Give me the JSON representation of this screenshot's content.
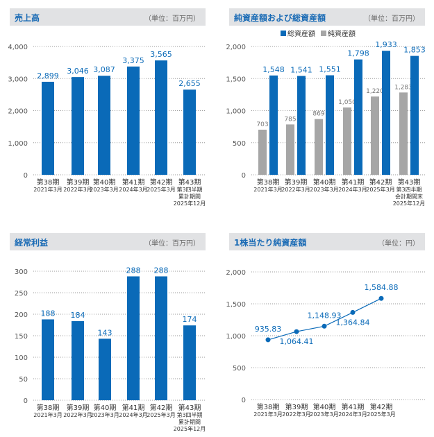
{
  "colors": {
    "blue": "#0a6ab8",
    "gray": "#a6a6a6",
    "header_bg": "#e1e2e4",
    "title": "#1a6bb5"
  },
  "chart_data": [
    {
      "type": "bar",
      "title": "売上高",
      "unit": "（単位：百万円）",
      "categories": [
        [
          "第38期",
          "2021年3月"
        ],
        [
          "第39期",
          "2022年3月"
        ],
        [
          "第40期",
          "2023年3月"
        ],
        [
          "第41期",
          "2024年3月"
        ],
        [
          "第42期",
          "2025年3月"
        ],
        [
          "第43期",
          "第3四半期",
          "累計期間",
          "2025年12月"
        ]
      ],
      "values": [
        2899,
        3046,
        3087,
        3375,
        3565,
        2655
      ],
      "value_labels": [
        "2,899",
        "3,046",
        "3,087",
        "3,375",
        "3,565",
        "2,655"
      ],
      "ylim": [
        0,
        4000
      ],
      "yticks": [
        "0",
        "1,000",
        "2,000",
        "3,000",
        "4,000"
      ],
      "grid": true
    },
    {
      "type": "bar",
      "title": "純資産額および総資産額",
      "unit": "（単位：百万円）",
      "legend": [
        "総資産額",
        "純資産額"
      ],
      "legend_position": "top-center",
      "categories": [
        [
          "第38期",
          "2021年3月"
        ],
        [
          "第39期",
          "2022年3月"
        ],
        [
          "第40期",
          "2023年3月"
        ],
        [
          "第41期",
          "2024年3月"
        ],
        [
          "第42期",
          "2025年3月"
        ],
        [
          "第43期",
          "第3四半期",
          "会計期間末",
          "2025年12月"
        ]
      ],
      "series": [
        {
          "name": "純資産額",
          "values": [
            703,
            785,
            869,
            1050,
            1220,
            1283
          ],
          "labels": [
            "703",
            "785",
            "869",
            "1,050",
            "1,220",
            "1,283"
          ]
        },
        {
          "name": "総資産額",
          "values": [
            1548,
            1541,
            1551,
            1798,
            1933,
            1853
          ],
          "labels": [
            "1,548",
            "1,541",
            "1,551",
            "1,798",
            "1,933",
            "1,853"
          ]
        }
      ],
      "ylim": [
        0,
        2000
      ],
      "yticks": [
        "0",
        "500",
        "1,000",
        "1,500",
        "2,000"
      ],
      "grid": true
    },
    {
      "type": "bar",
      "title": "経常利益",
      "unit": "（単位：百万円）",
      "categories": [
        [
          "第38期",
          "2021年3月"
        ],
        [
          "第39期",
          "2022年3月"
        ],
        [
          "第40期",
          "2023年3月"
        ],
        [
          "第41期",
          "2024年3月"
        ],
        [
          "第42期",
          "2025年3月"
        ],
        [
          "第43期",
          "第3四半期",
          "累計期間",
          "2025年12月"
        ]
      ],
      "values": [
        188,
        184,
        143,
        288,
        288,
        174
      ],
      "value_labels": [
        "188",
        "184",
        "143",
        "288",
        "288",
        "174"
      ],
      "ylim": [
        0,
        300
      ],
      "yticks": [
        "0",
        "50",
        "100",
        "150",
        "200",
        "250",
        "300"
      ],
      "grid": true
    },
    {
      "type": "line",
      "title": "1株当たり純資産額",
      "unit": "（単位：円）",
      "categories": [
        [
          "第38期",
          "2021年3月"
        ],
        [
          "第39期",
          "2022年3月"
        ],
        [
          "第40期",
          "2023年3月"
        ],
        [
          "第41期",
          "2024年3月"
        ],
        [
          "第42期",
          "2025年3月"
        ]
      ],
      "values": [
        935.83,
        1064.41,
        1148.93,
        1364.84,
        1584.88
      ],
      "value_labels": [
        "935.83",
        "1,064.41",
        "1,148.93",
        "1,364.84",
        "1,584.88"
      ],
      "ylim": [
        0,
        2000
      ],
      "yticks": [
        "0",
        "500",
        "1,000",
        "1,500",
        "2,000"
      ],
      "grid": true
    }
  ]
}
